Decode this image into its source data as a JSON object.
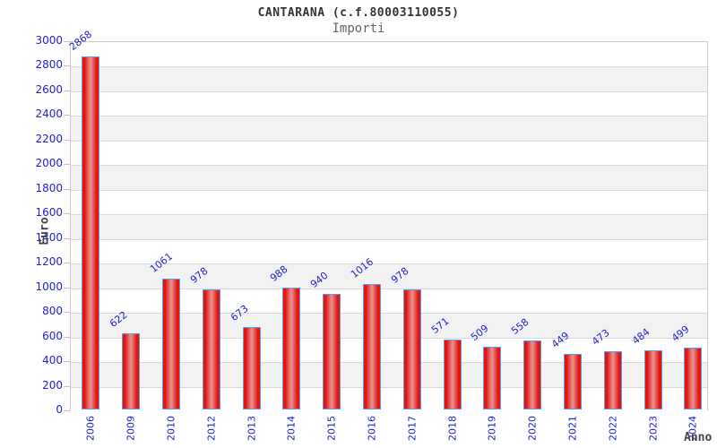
{
  "chart_data": {
    "type": "bar",
    "title": "CANTARANA (c.f.80003110055)",
    "subtitle": "Importi",
    "xlabel": "Anno",
    "ylabel": "Euro",
    "categories": [
      "2006",
      "2009",
      "2010",
      "2012",
      "2013",
      "2014",
      "2015",
      "2016",
      "2017",
      "2018",
      "2019",
      "2020",
      "2021",
      "2022",
      "2023",
      "2024"
    ],
    "values": [
      2868,
      622,
      1061,
      978,
      673,
      988,
      940,
      1016,
      978,
      571,
      509,
      558,
      449,
      473,
      484,
      499
    ],
    "ylim": [
      0,
      3000
    ],
    "ytick_step": 200,
    "grid": "horizontal-bands",
    "legend": "none",
    "colors": {
      "bar_edge": "#ee1111",
      "bar_center": "#e89494",
      "bar_border": "#55a0e8",
      "label_blue": "#2222cc",
      "band_gray": "#f2f2f2",
      "gridline": "#d9d9d9",
      "plot_border": "#cccccc",
      "title": "#333333",
      "subtitle": "#666666",
      "axis_title": "#444444"
    }
  }
}
